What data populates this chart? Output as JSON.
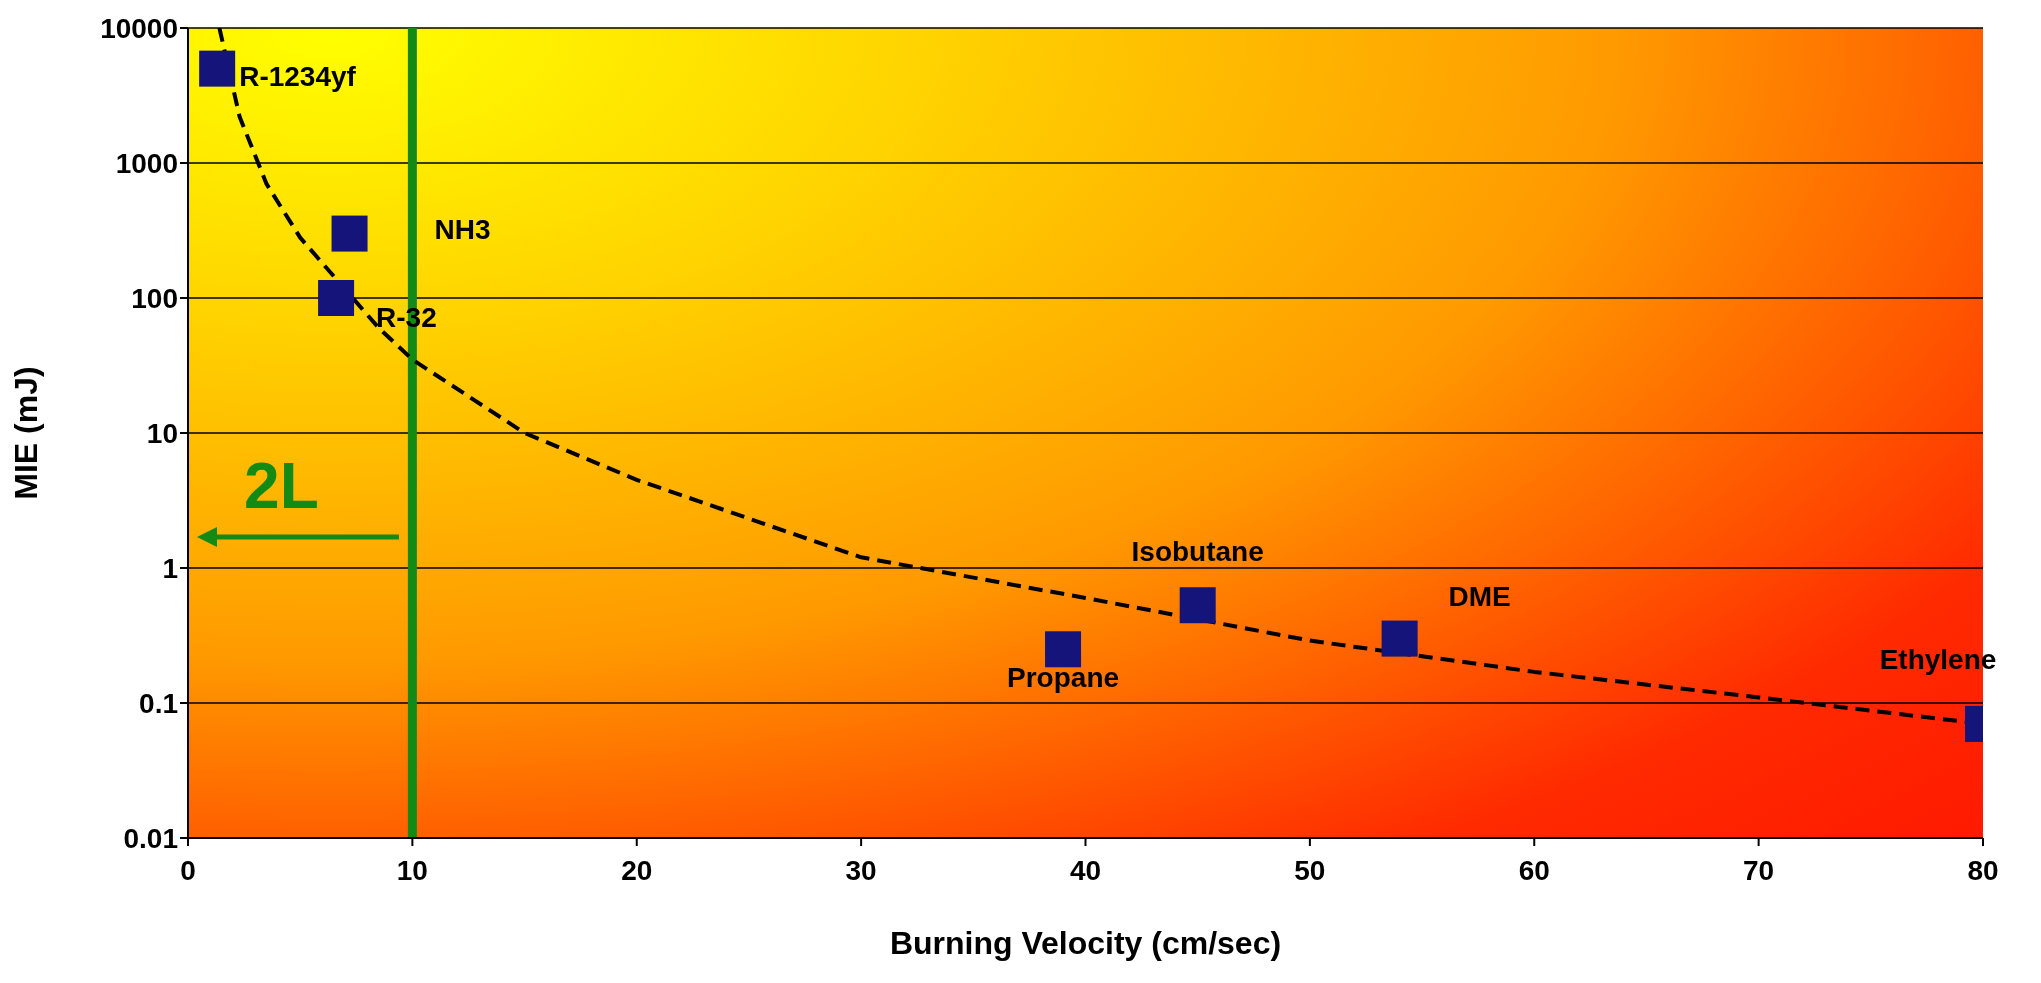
{
  "chart_data": {
    "type": "scatter",
    "xlabel": "Burning Velocity (cm/sec)",
    "ylabel": "MIE (mJ)",
    "log": "y",
    "grid": "y",
    "legend": false,
    "marker": "square",
    "xlim": [
      0,
      80
    ],
    "xticks": [
      0,
      10,
      20,
      30,
      40,
      50,
      60,
      70,
      80
    ],
    "ylim": [
      0.01,
      10000
    ],
    "yticks": [
      0.01,
      0.1,
      1,
      10,
      100,
      1000,
      10000
    ],
    "series": [
      {
        "name": "R-1234yf",
        "color": "#14147a",
        "x": [
          1.3
        ],
        "values": [
          5000
        ]
      },
      {
        "name": "NH3",
        "color": "#14147a",
        "x": [
          7.2
        ],
        "values": [
          300
        ]
      },
      {
        "name": "R-32",
        "color": "#14147a",
        "x": [
          6.6
        ],
        "values": [
          100
        ]
      },
      {
        "name": "Propane",
        "color": "#14147a",
        "x": [
          39
        ],
        "values": [
          0.25
        ]
      },
      {
        "name": "Isobutane",
        "color": "#14147a",
        "x": [
          45
        ],
        "values": [
          0.53
        ]
      },
      {
        "name": "DME",
        "color": "#14147a",
        "x": [
          54
        ],
        "values": [
          0.3
        ]
      },
      {
        "name": "Ethylene",
        "color": "#14147a",
        "x": [
          80
        ],
        "values": [
          0.07
        ]
      },
      {
        "type": "line",
        "color": "#000000",
        "line_style": "dashed",
        "marker": "none",
        "x": [
          1.4,
          2.3,
          3.5,
          5,
          8.5,
          10,
          15,
          20,
          30,
          40,
          50,
          60,
          70,
          80
        ],
        "values": [
          10000,
          2200,
          700,
          280,
          60,
          35,
          10,
          4.5,
          1.2,
          0.6,
          0.29,
          0.17,
          0.11,
          0.07
        ]
      }
    ],
    "ref_lines": [
      {
        "axis": "x",
        "value": 10,
        "color": "#138a13"
      }
    ],
    "annotations": [
      "2L"
    ]
  }
}
